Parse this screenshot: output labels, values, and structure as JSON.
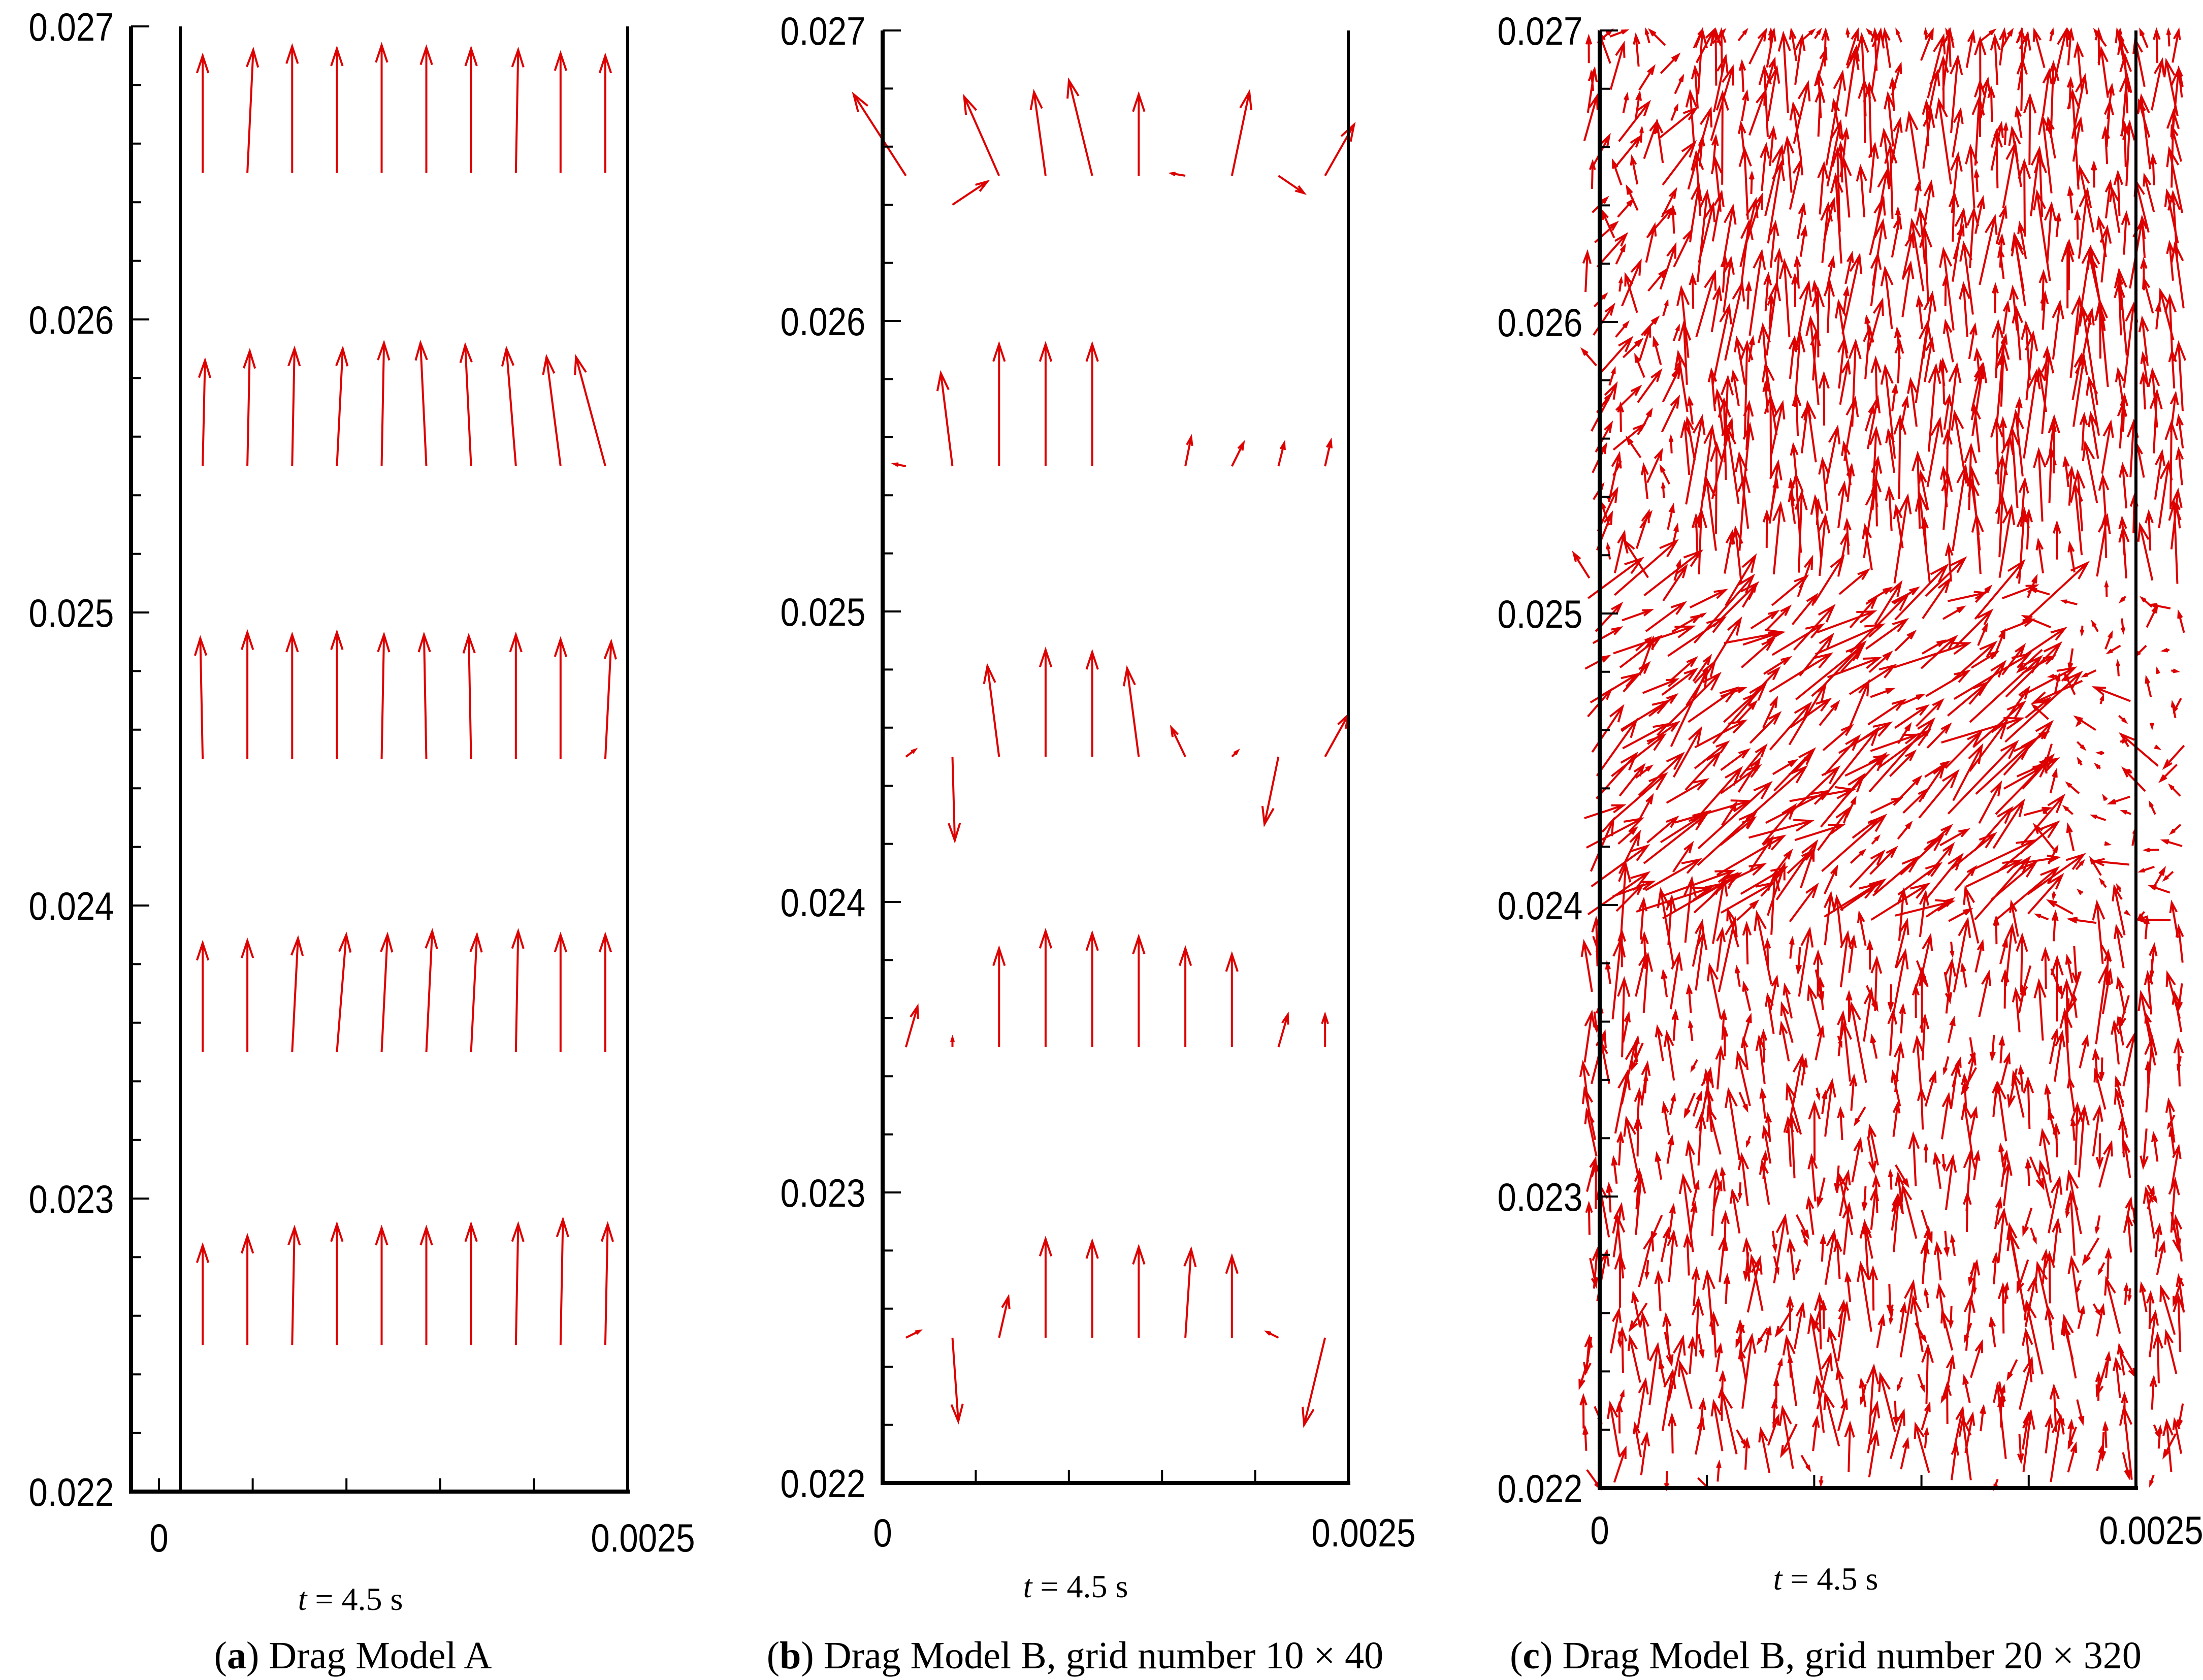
{
  "figure": {
    "panels": [
      {
        "id": "a",
        "caption_letter": "a",
        "caption_text": " Drag Model A",
        "time_var": "t",
        "time_rest": " = 4.5 s"
      },
      {
        "id": "b",
        "caption_letter": "b",
        "caption_text": " Drag Model B, grid number 10 × 40",
        "time_var": "t",
        "time_rest": " = 4.5 s"
      },
      {
        "id": "c",
        "caption_letter": "c",
        "caption_text": " Drag Model B, grid number 20 × 320",
        "time_var": "t",
        "time_rest": " = 4.5 s"
      }
    ],
    "colors": {
      "vector": "#dd0000",
      "axis": "#000000"
    }
  },
  "chart_data": [
    {
      "type": "vector-field",
      "title": "(a) Drag Model A",
      "xlabel": "t = 4.5 s",
      "xlim": [
        0,
        0.0025
      ],
      "ylim": [
        0.022,
        0.027
      ],
      "x_tick_labels": [
        "0",
        "0.0025"
      ],
      "y_tick_labels": [
        "0.022",
        "0.023",
        "0.024",
        "0.025",
        "0.026",
        "0.027"
      ],
      "vector_scale": 0.0004,
      "vectors": [
        [
          0.000125,
          0.0265,
          0.0,
          1.0
        ],
        [
          0.000375,
          0.0265,
          0.05,
          1.05
        ],
        [
          0.000625,
          0.0265,
          0.0,
          1.08
        ],
        [
          0.000875,
          0.0265,
          0.0,
          1.06
        ],
        [
          0.001125,
          0.0265,
          0.0,
          1.09
        ],
        [
          0.001375,
          0.0265,
          0.0,
          1.07
        ],
        [
          0.001625,
          0.0265,
          0.0,
          1.06
        ],
        [
          0.001875,
          0.0265,
          0.02,
          1.05
        ],
        [
          0.002125,
          0.0265,
          0.0,
          1.02
        ],
        [
          0.002375,
          0.0265,
          0.0,
          1.0
        ],
        [
          0.000125,
          0.0255,
          0.02,
          0.9
        ],
        [
          0.000375,
          0.0255,
          0.02,
          0.98
        ],
        [
          0.000625,
          0.0255,
          0.02,
          1.0
        ],
        [
          0.000875,
          0.0255,
          0.05,
          1.0
        ],
        [
          0.001125,
          0.0255,
          0.02,
          1.05
        ],
        [
          0.001375,
          0.0255,
          -0.05,
          1.05
        ],
        [
          0.001625,
          0.0255,
          -0.05,
          1.03
        ],
        [
          0.001875,
          0.0255,
          -0.08,
          1.0
        ],
        [
          0.002125,
          0.0255,
          -0.12,
          0.93
        ],
        [
          0.002375,
          0.0255,
          -0.25,
          0.93
        ],
        [
          0.000125,
          0.0245,
          -0.02,
          1.03
        ],
        [
          0.000375,
          0.0245,
          0.0,
          1.08
        ],
        [
          0.000625,
          0.0245,
          0.0,
          1.06
        ],
        [
          0.000875,
          0.0245,
          0.0,
          1.08
        ],
        [
          0.001125,
          0.0245,
          0.02,
          1.06
        ],
        [
          0.001375,
          0.0245,
          -0.02,
          1.06
        ],
        [
          0.001625,
          0.0245,
          -0.02,
          1.05
        ],
        [
          0.001875,
          0.0245,
          0.0,
          1.06
        ],
        [
          0.002125,
          0.0245,
          0.0,
          1.02
        ],
        [
          0.002375,
          0.0245,
          0.05,
          1.0
        ],
        [
          0.000125,
          0.0235,
          0.0,
          0.93
        ],
        [
          0.000375,
          0.0235,
          0.0,
          0.95
        ],
        [
          0.000625,
          0.0235,
          0.05,
          0.97
        ],
        [
          0.000875,
          0.0235,
          0.08,
          1.0
        ],
        [
          0.001125,
          0.0235,
          0.05,
          1.0
        ],
        [
          0.001375,
          0.0235,
          0.05,
          1.03
        ],
        [
          0.001625,
          0.0235,
          0.05,
          1.0
        ],
        [
          0.001875,
          0.0235,
          0.02,
          1.03
        ],
        [
          0.002125,
          0.0235,
          0.0,
          1.0
        ],
        [
          0.002375,
          0.0235,
          0.0,
          1.0
        ],
        [
          0.000125,
          0.0225,
          0.0,
          0.85
        ],
        [
          0.000375,
          0.0225,
          0.0,
          0.93
        ],
        [
          0.000625,
          0.0225,
          0.02,
          1.0
        ],
        [
          0.000875,
          0.0225,
          0.0,
          1.03
        ],
        [
          0.001125,
          0.0225,
          0.0,
          1.0
        ],
        [
          0.001375,
          0.0225,
          0.0,
          1.0
        ],
        [
          0.001625,
          0.0225,
          0.0,
          1.03
        ],
        [
          0.001875,
          0.0225,
          0.02,
          1.03
        ],
        [
          0.002125,
          0.0225,
          0.02,
          1.07
        ],
        [
          0.002375,
          0.0225,
          0.02,
          1.03
        ]
      ]
    },
    {
      "type": "vector-field",
      "title": "(b) Drag Model B, grid number 10 × 40",
      "xlabel": "t = 4.5 s",
      "xlim": [
        0,
        0.0025
      ],
      "ylim": [
        0.022,
        0.027
      ],
      "x_tick_labels": [
        "0",
        "0.0025"
      ],
      "y_tick_labels": [
        "0.022",
        "0.023",
        "0.024",
        "0.025",
        "0.026",
        "0.027"
      ],
      "vector_scale": 0.0004,
      "vectors": [
        [
          0.000125,
          0.0265,
          -0.45,
          0.7
        ],
        [
          0.000375,
          0.0264,
          0.3,
          0.2
        ],
        [
          0.000625,
          0.0265,
          -0.3,
          0.68
        ],
        [
          0.000875,
          0.0265,
          -0.1,
          0.72
        ],
        [
          0.001125,
          0.0265,
          -0.2,
          0.82
        ],
        [
          0.001375,
          0.0265,
          0.0,
          0.7
        ],
        [
          0.001625,
          0.0265,
          -0.12,
          0.02
        ],
        [
          0.001875,
          0.0265,
          0.15,
          0.72
        ],
        [
          0.002125,
          0.0265,
          0.22,
          -0.15
        ],
        [
          0.002375,
          0.0265,
          0.25,
          0.44
        ],
        [
          0.000125,
          0.0255,
          -0.1,
          0.02
        ],
        [
          0.000375,
          0.0255,
          -0.1,
          0.8
        ],
        [
          0.000625,
          0.0255,
          0.0,
          1.05
        ],
        [
          0.000875,
          0.0255,
          0.0,
          1.05
        ],
        [
          0.001125,
          0.0255,
          0.0,
          1.05
        ],
        [
          0.001375,
          0.0255,
          0.0,
          0.0
        ],
        [
          0.001625,
          0.0255,
          0.05,
          0.25
        ],
        [
          0.001875,
          0.0255,
          0.1,
          0.2
        ],
        [
          0.002125,
          0.0255,
          0.05,
          0.2
        ],
        [
          0.002375,
          0.0255,
          0.05,
          0.22
        ],
        [
          0.000125,
          0.0245,
          0.08,
          0.06
        ],
        [
          0.000375,
          0.0245,
          0.02,
          -0.72
        ],
        [
          0.000625,
          0.0245,
          -0.1,
          0.78
        ],
        [
          0.000875,
          0.0245,
          0.0,
          0.92
        ],
        [
          0.001125,
          0.0245,
          0.0,
          0.9
        ],
        [
          0.001375,
          0.0245,
          -0.1,
          0.76
        ],
        [
          0.001625,
          0.0245,
          -0.12,
          0.25
        ],
        [
          0.001875,
          0.0245,
          0.05,
          0.05
        ],
        [
          0.002125,
          0.0245,
          -0.12,
          -0.58
        ],
        [
          0.002375,
          0.0245,
          0.2,
          0.36
        ],
        [
          0.000125,
          0.0235,
          0.1,
          0.35
        ],
        [
          0.000375,
          0.0235,
          0.0,
          0.08
        ],
        [
          0.000625,
          0.0235,
          0.0,
          0.85
        ],
        [
          0.000875,
          0.0235,
          0.0,
          1.0
        ],
        [
          0.001125,
          0.0235,
          0.0,
          0.98
        ],
        [
          0.001375,
          0.0235,
          0.0,
          0.95
        ],
        [
          0.001625,
          0.0235,
          0.0,
          0.85
        ],
        [
          0.001875,
          0.0235,
          0.0,
          0.8
        ],
        [
          0.002125,
          0.0235,
          0.08,
          0.28
        ],
        [
          0.002375,
          0.0235,
          0.0,
          0.28
        ],
        [
          0.000125,
          0.0225,
          0.12,
          0.06
        ],
        [
          0.000375,
          0.0225,
          0.05,
          -0.72
        ],
        [
          0.000625,
          0.0225,
          0.08,
          0.35
        ],
        [
          0.000875,
          0.0225,
          0.0,
          0.85
        ],
        [
          0.001125,
          0.0225,
          0.0,
          0.83
        ],
        [
          0.001375,
          0.0225,
          0.0,
          0.78
        ],
        [
          0.001625,
          0.0225,
          0.05,
          0.76
        ],
        [
          0.001875,
          0.0225,
          0.0,
          0.7
        ],
        [
          0.002125,
          0.0225,
          -0.1,
          0.05
        ],
        [
          0.002375,
          0.0225,
          -0.18,
          -0.75
        ]
      ]
    },
    {
      "type": "vector-field",
      "title": "(c) Drag Model B, grid number 20 × 320",
      "xlabel": "t = 4.5 s",
      "xlim": [
        0,
        0.0025
      ],
      "ylim": [
        0.022,
        0.027
      ],
      "x_tick_labels": [
        "0",
        "0.0025"
      ],
      "y_tick_labels": [
        "0.022",
        "0.023",
        "0.024",
        "0.025",
        "0.026",
        "0.027"
      ],
      "vector_scale": 0.0004,
      "dense_field": {
        "grid": [
          20,
          320
        ],
        "x_extent": [
          -0.0001,
          0.00275
        ],
        "description": "dense turbulent velocity field; strong upward flow in upper region converging near x = 0.002, lateral crossing flow around y = 0.024, upward flow in the lower region"
      }
    }
  ]
}
